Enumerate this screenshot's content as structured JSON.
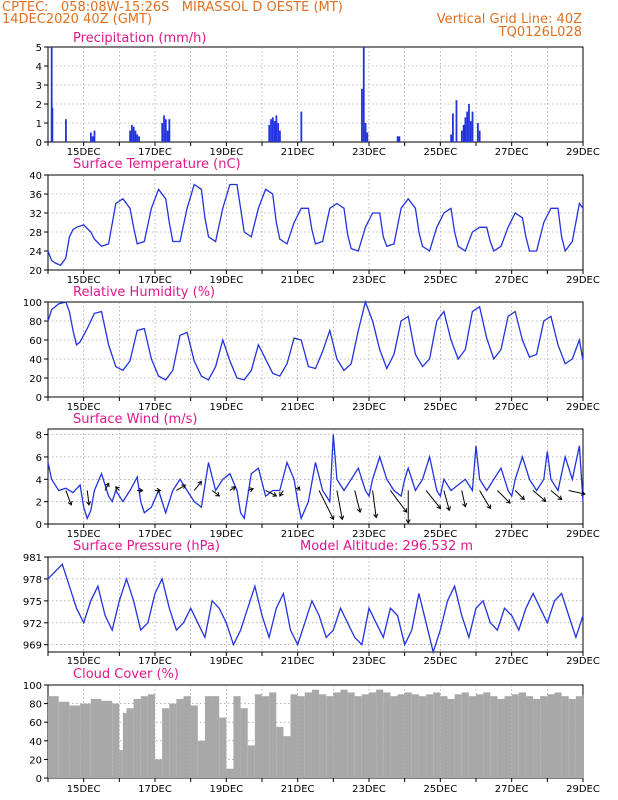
{
  "header": {
    "line1_left": "CPTEC:   058:08W-15:26S   MIRASSOL D OESTE (MT)",
    "line2_left": "14DEC2020 40Z (GMT)",
    "line2_right": "Vertical Grid Line: 40Z",
    "line3_right": "TQ0126L028"
  },
  "colors": {
    "header": "#e07020",
    "title": "#e0188c",
    "line": "#2233dd",
    "bar": "#2233dd",
    "cloud": "#a8a8a8",
    "grid": "#888888"
  },
  "x_axis": {
    "start_day": 14,
    "end_day": 29,
    "tick_labels": [
      "15DEC",
      "17DEC",
      "19DEC",
      "21DEC",
      "23DEC",
      "25DEC",
      "27DEC",
      "29DEC"
    ]
  },
  "chart_data": [
    {
      "type": "bar",
      "title": "Precipitation (mm/h)",
      "ylim": [
        0,
        5
      ],
      "yticks": [
        0,
        1,
        2,
        3,
        4,
        5
      ],
      "x": [
        14.1,
        14.12,
        14.5,
        15.2,
        15.25,
        15.3,
        16.3,
        16.35,
        16.4,
        16.45,
        16.5,
        16.55,
        17.2,
        17.25,
        17.3,
        17.35,
        17.4,
        20.2,
        20.25,
        20.3,
        20.35,
        20.4,
        20.45,
        20.5,
        21.1,
        22.8,
        22.85,
        22.9,
        22.95,
        23.8,
        23.85,
        25.3,
        25.35,
        25.45,
        25.6,
        25.65,
        25.7,
        25.75,
        25.8,
        25.85,
        25.9,
        26.05,
        26.1
      ],
      "values": [
        5.0,
        1.8,
        1.2,
        0.5,
        0.3,
        0.6,
        0.6,
        0.9,
        0.8,
        0.6,
        0.4,
        0.3,
        1.0,
        1.4,
        1.2,
        0.6,
        1.2,
        0.9,
        1.2,
        1.3,
        1.1,
        1.4,
        1.0,
        0.6,
        1.6,
        2.8,
        5.0,
        1.0,
        0.5,
        0.3,
        0.3,
        0.4,
        1.5,
        2.2,
        0.6,
        0.9,
        1.3,
        1.6,
        2.0,
        1.1,
        1.6,
        1.0,
        0.6
      ]
    },
    {
      "type": "line",
      "title": "Surface Temperature (nC)",
      "ylim": [
        20,
        40
      ],
      "yticks": [
        20,
        24,
        28,
        32,
        36,
        40
      ],
      "x": [
        14.0,
        14.05,
        14.1,
        14.2,
        14.35,
        14.5,
        14.6,
        14.7,
        14.8,
        15.0,
        15.2,
        15.3,
        15.5,
        15.7,
        15.9,
        16.1,
        16.3,
        16.4,
        16.5,
        16.7,
        16.9,
        17.1,
        17.3,
        17.4,
        17.5,
        17.7,
        17.9,
        18.1,
        18.3,
        18.4,
        18.5,
        18.7,
        18.9,
        19.1,
        19.3,
        19.4,
        19.5,
        19.7,
        19.9,
        20.1,
        20.3,
        20.4,
        20.5,
        20.7,
        20.9,
        21.1,
        21.3,
        21.4,
        21.5,
        21.7,
        21.9,
        22.1,
        22.3,
        22.4,
        22.5,
        22.7,
        22.9,
        23.1,
        23.3,
        23.4,
        23.5,
        23.7,
        23.9,
        24.1,
        24.3,
        24.4,
        24.5,
        24.7,
        24.9,
        25.1,
        25.3,
        25.4,
        25.5,
        25.7,
        25.9,
        26.1,
        26.3,
        26.4,
        26.5,
        26.7,
        26.9,
        27.1,
        27.3,
        27.4,
        27.5,
        27.7,
        27.9,
        28.1,
        28.3,
        28.4,
        28.5,
        28.7,
        28.9,
        29.0
      ],
      "values": [
        24,
        23,
        22,
        21.5,
        21,
        22.5,
        27,
        28.5,
        29,
        29.5,
        28,
        26.5,
        25,
        25.5,
        34,
        35,
        33,
        29,
        25.5,
        26,
        33,
        37,
        35,
        30,
        26,
        26,
        33,
        38,
        37,
        31,
        27,
        26,
        33,
        38,
        38,
        33,
        28,
        27,
        33,
        37,
        36,
        30,
        26.5,
        25.5,
        30,
        33,
        33,
        28.5,
        25.5,
        26,
        33,
        34,
        33,
        27.5,
        24.5,
        24,
        29,
        32,
        32,
        27,
        25,
        25.5,
        33,
        35,
        33,
        28,
        25,
        24,
        29,
        32,
        33,
        28,
        25,
        24,
        28,
        29,
        29,
        26,
        24,
        25,
        29,
        32,
        31,
        27,
        24,
        24,
        30,
        33,
        33,
        27,
        24,
        26,
        34,
        33
      ]
    },
    {
      "type": "line",
      "title": "Relative Humidity (%)",
      "ylim": [
        0,
        100
      ],
      "yticks": [
        0,
        20,
        40,
        60,
        80,
        100
      ],
      "x": [
        14.0,
        14.1,
        14.3,
        14.5,
        14.6,
        14.7,
        14.8,
        14.9,
        15.1,
        15.3,
        15.5,
        15.7,
        15.9,
        16.1,
        16.3,
        16.5,
        16.7,
        16.9,
        17.1,
        17.3,
        17.5,
        17.7,
        17.9,
        18.1,
        18.3,
        18.5,
        18.7,
        18.9,
        19.1,
        19.3,
        19.5,
        19.7,
        19.9,
        20.1,
        20.3,
        20.5,
        20.7,
        20.9,
        21.1,
        21.3,
        21.5,
        21.7,
        21.9,
        22.1,
        22.3,
        22.5,
        22.7,
        22.9,
        23.1,
        23.3,
        23.5,
        23.7,
        23.9,
        24.1,
        24.3,
        24.5,
        24.7,
        24.9,
        25.1,
        25.3,
        25.5,
        25.7,
        25.9,
        26.1,
        26.3,
        26.5,
        26.7,
        26.9,
        27.1,
        27.3,
        27.5,
        27.7,
        27.9,
        28.1,
        28.3,
        28.5,
        28.7,
        28.9,
        29.0
      ],
      "values": [
        80,
        92,
        98,
        100,
        90,
        70,
        55,
        58,
        72,
        88,
        90,
        55,
        32,
        28,
        38,
        70,
        72,
        40,
        22,
        18,
        28,
        65,
        68,
        38,
        22,
        18,
        32,
        60,
        38,
        20,
        18,
        28,
        55,
        40,
        25,
        22,
        35,
        62,
        60,
        32,
        30,
        48,
        70,
        40,
        28,
        35,
        70,
        100,
        80,
        50,
        30,
        45,
        80,
        85,
        45,
        32,
        40,
        80,
        90,
        60,
        40,
        50,
        90,
        95,
        62,
        40,
        50,
        85,
        90,
        60,
        42,
        45,
        80,
        85,
        55,
        35,
        40,
        60,
        38
      ]
    },
    {
      "type": "line",
      "title": "Surface Wind (m/s)",
      "ylim": [
        0,
        8.5
      ],
      "yticks": [
        0,
        2,
        4,
        6,
        8
      ],
      "x": [
        14.0,
        14.1,
        14.3,
        14.5,
        14.7,
        14.9,
        15.0,
        15.1,
        15.2,
        15.3,
        15.5,
        15.7,
        15.8,
        15.9,
        16.1,
        16.3,
        16.5,
        16.6,
        16.7,
        16.9,
        17.1,
        17.3,
        17.5,
        17.7,
        17.9,
        18.1,
        18.3,
        18.5,
        18.7,
        18.9,
        19.1,
        19.3,
        19.4,
        19.5,
        19.7,
        19.9,
        20.1,
        20.3,
        20.5,
        20.7,
        20.9,
        21.0,
        21.1,
        21.3,
        21.5,
        21.7,
        21.9,
        22.0,
        22.1,
        22.3,
        22.5,
        22.7,
        22.9,
        23.0,
        23.1,
        23.3,
        23.5,
        23.7,
        23.9,
        24.0,
        24.1,
        24.3,
        24.5,
        24.7,
        24.9,
        25.0,
        25.1,
        25.3,
        25.5,
        25.7,
        25.9,
        26.0,
        26.1,
        26.3,
        26.5,
        26.7,
        26.9,
        27.0,
        27.1,
        27.3,
        27.5,
        27.7,
        27.9,
        28.0,
        28.1,
        28.3,
        28.5,
        28.7,
        28.9,
        29.0
      ],
      "values": [
        5.5,
        4,
        3,
        3.2,
        2.8,
        3.5,
        1.5,
        0.5,
        1.2,
        3,
        4.5,
        2.5,
        2,
        3,
        2,
        3,
        4.2,
        2,
        1,
        1.5,
        3,
        1,
        3,
        4,
        3,
        2,
        1.5,
        5.5,
        3,
        4,
        4.5,
        3,
        1,
        0.5,
        4.5,
        5,
        2.5,
        3,
        3,
        5.5,
        4,
        2,
        0.5,
        2,
        5.5,
        3,
        2,
        8,
        4,
        3,
        4,
        5,
        3,
        2.5,
        4,
        6,
        4,
        3,
        2.5,
        4,
        5,
        3,
        4,
        6,
        3,
        2.5,
        4,
        3,
        3.5,
        4,
        3,
        7,
        4,
        3,
        4,
        5,
        3,
        2.5,
        4,
        6,
        4,
        3,
        4,
        6.5,
        4,
        3,
        6,
        4,
        7,
        2
      ]
    },
    {
      "type": "line",
      "title": "Surface Pressure (hPa)",
      "ylim": [
        968,
        981
      ],
      "yticks": [
        969,
        972,
        975,
        978,
        981
      ],
      "x": [
        14.0,
        14.2,
        14.4,
        14.6,
        14.8,
        15.0,
        15.2,
        15.4,
        15.6,
        15.8,
        16.0,
        16.2,
        16.4,
        16.6,
        16.8,
        17.0,
        17.2,
        17.4,
        17.6,
        17.8,
        18.0,
        18.2,
        18.4,
        18.6,
        18.8,
        19.0,
        19.2,
        19.4,
        19.6,
        19.8,
        20.0,
        20.2,
        20.4,
        20.6,
        20.8,
        21.0,
        21.2,
        21.4,
        21.6,
        21.8,
        22.0,
        22.2,
        22.4,
        22.6,
        22.8,
        23.0,
        23.2,
        23.4,
        23.6,
        23.8,
        24.0,
        24.2,
        24.4,
        24.6,
        24.8,
        25.0,
        25.2,
        25.4,
        25.6,
        25.8,
        26.0,
        26.2,
        26.4,
        26.6,
        26.8,
        27.0,
        27.2,
        27.4,
        27.6,
        27.8,
        28.0,
        28.2,
        28.4,
        28.6,
        28.8,
        29.0
      ],
      "values": [
        978,
        979,
        980,
        977,
        974,
        972,
        975,
        977,
        973,
        971,
        975,
        978,
        975,
        971,
        972,
        976,
        978,
        974,
        971,
        972,
        974,
        972,
        970,
        975,
        974,
        972,
        969,
        971,
        974,
        977,
        973,
        970,
        974,
        976,
        971,
        969,
        972,
        975,
        973,
        970,
        971,
        974,
        972,
        970,
        969,
        974,
        972,
        970,
        974,
        973,
        969,
        971,
        976,
        972,
        968,
        971,
        975,
        977,
        973,
        970,
        974,
        975,
        972,
        971,
        974,
        973,
        971,
        974,
        976,
        974,
        972,
        975,
        976,
        973,
        970,
        973
      ]
    },
    {
      "type": "bar",
      "title": "Cloud Cover (%)",
      "ylim": [
        0,
        100
      ],
      "yticks": [
        0,
        20,
        40,
        60,
        80,
        100
      ],
      "x": [
        14.0,
        14.3,
        14.6,
        14.9,
        15.2,
        15.5,
        15.8,
        16.0,
        16.1,
        16.2,
        16.4,
        16.6,
        16.8,
        17.0,
        17.2,
        17.4,
        17.6,
        17.8,
        18.0,
        18.2,
        18.4,
        18.6,
        18.8,
        19.0,
        19.2,
        19.4,
        19.6,
        19.8,
        20.0,
        20.2,
        20.4,
        20.6,
        20.8,
        21.0,
        21.2,
        21.4,
        21.6,
        21.8,
        22.0,
        22.2,
        22.4,
        22.6,
        22.8,
        23.0,
        23.2,
        23.4,
        23.6,
        23.8,
        24.0,
        24.2,
        24.4,
        24.6,
        24.8,
        25.0,
        25.2,
        25.4,
        25.6,
        25.8,
        26.0,
        26.2,
        26.4,
        26.6,
        26.8,
        27.0,
        27.2,
        27.4,
        27.6,
        27.8,
        28.0,
        28.2,
        28.4,
        28.6,
        28.8,
        29.0
      ],
      "values": [
        88,
        82,
        78,
        80,
        85,
        83,
        80,
        30,
        70,
        75,
        85,
        88,
        90,
        20,
        75,
        80,
        85,
        88,
        78,
        40,
        88,
        88,
        65,
        10,
        88,
        75,
        35,
        90,
        88,
        92,
        55,
        45,
        90,
        88,
        92,
        95,
        90,
        88,
        92,
        95,
        92,
        88,
        90,
        92,
        95,
        92,
        88,
        90,
        92,
        90,
        88,
        90,
        92,
        88,
        85,
        90,
        92,
        88,
        90,
        92,
        88,
        85,
        88,
        90,
        92,
        88,
        85,
        88,
        90,
        92,
        88,
        85,
        88,
        90
      ]
    }
  ],
  "panel_extras": {
    "pressure_altitude_label": "Model Altitude: 296.532 m"
  },
  "wind_vectors": [
    {
      "day": 14.5,
      "dx": 0.3,
      "dy": -0.8
    },
    {
      "day": 15.1,
      "dx": 0.1,
      "dy": -0.8
    },
    {
      "day": 15.6,
      "dx": 0.2,
      "dy": 0.4
    },
    {
      "day": 16.0,
      "dx": -0.2,
      "dy": 0.2
    },
    {
      "day": 16.5,
      "dx": 0.3,
      "dy": 0.0
    },
    {
      "day": 17.0,
      "dx": 0.3,
      "dy": 0.0
    },
    {
      "day": 17.6,
      "dx": 0.5,
      "dy": 0.3
    },
    {
      "day": 18.1,
      "dx": 0.4,
      "dy": 0.5
    },
    {
      "day": 18.6,
      "dx": 0.4,
      "dy": -0.3
    },
    {
      "day": 19.1,
      "dx": 0.3,
      "dy": 0.2
    },
    {
      "day": 19.6,
      "dx": 0.3,
      "dy": 0.1
    },
    {
      "day": 20.1,
      "dx": 0.6,
      "dy": -0.3
    },
    {
      "day": 20.6,
      "dx": -0.2,
      "dy": -0.3
    },
    {
      "day": 21.0,
      "dx": 0.1,
      "dy": 0.2
    },
    {
      "day": 21.6,
      "dx": 0.8,
      "dy": -1.6
    },
    {
      "day": 22.1,
      "dx": 0.3,
      "dy": -1.6
    },
    {
      "day": 22.6,
      "dx": 0.3,
      "dy": -1.2
    },
    {
      "day": 23.1,
      "dx": 0.2,
      "dy": -1.5
    },
    {
      "day": 23.6,
      "dx": 0.9,
      "dy": -1.2
    },
    {
      "day": 24.1,
      "dx": 0.0,
      "dy": -1.8
    },
    {
      "day": 24.6,
      "dx": 0.8,
      "dy": -1.0
    },
    {
      "day": 25.1,
      "dx": 0.3,
      "dy": -1.1
    },
    {
      "day": 25.6,
      "dx": 0.2,
      "dy": -0.9
    },
    {
      "day": 26.1,
      "dx": 0.6,
      "dy": -1.0
    },
    {
      "day": 26.6,
      "dx": 0.7,
      "dy": -0.7
    },
    {
      "day": 27.1,
      "dx": 0.5,
      "dy": -0.5
    },
    {
      "day": 27.6,
      "dx": 0.7,
      "dy": -0.6
    },
    {
      "day": 28.1,
      "dx": 0.6,
      "dy": -0.5
    },
    {
      "day": 28.6,
      "dx": 0.9,
      "dy": -0.2
    }
  ]
}
